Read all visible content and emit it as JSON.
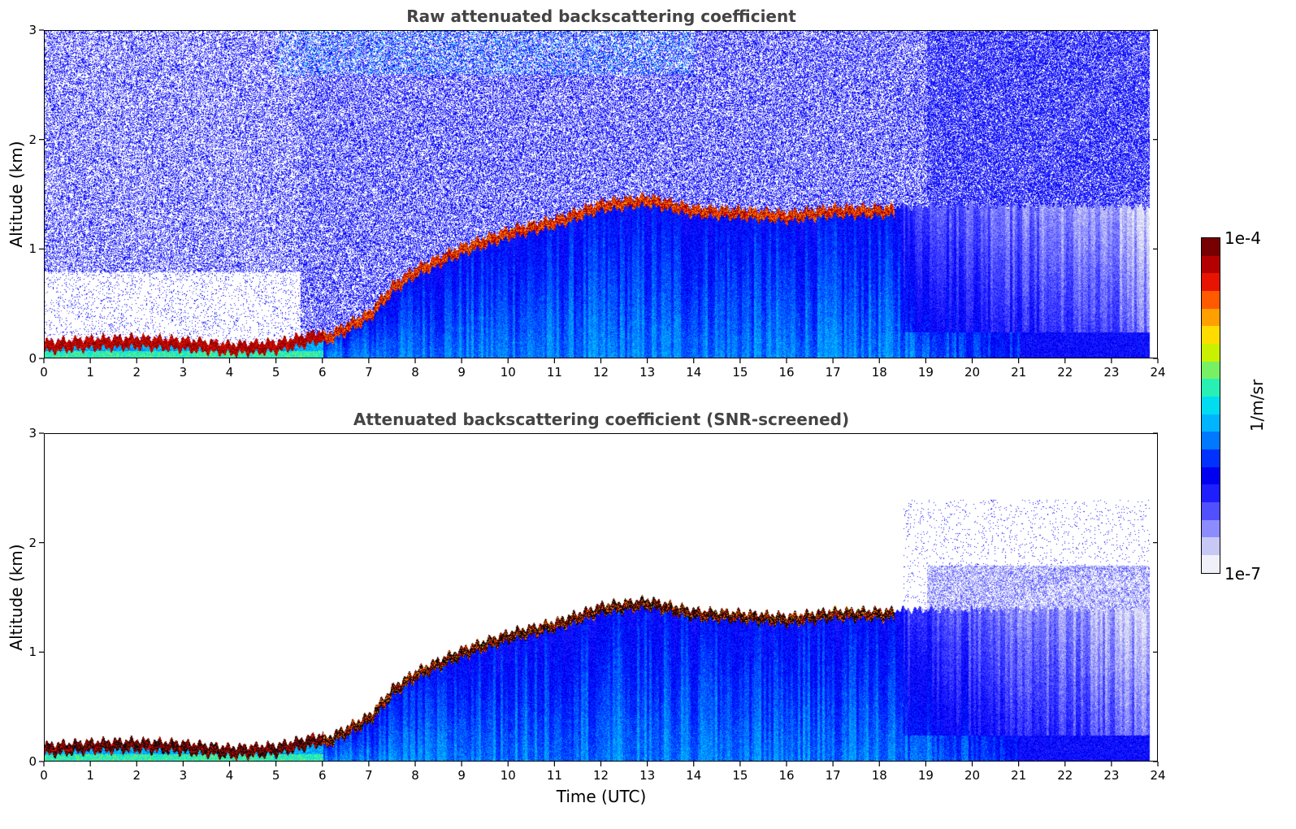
{
  "chart_data": [
    {
      "type": "heatmap",
      "title": "Raw attenuated backscattering coefficient",
      "xlabel": "",
      "ylabel": "Altitude (km)",
      "xlim": [
        0,
        24
      ],
      "ylim": [
        0,
        3
      ],
      "xticks": [
        "0",
        "1",
        "2",
        "3",
        "4",
        "5",
        "6",
        "7",
        "8",
        "9",
        "10",
        "11",
        "12",
        "13",
        "14",
        "15",
        "16",
        "17",
        "18",
        "19",
        "20",
        "21",
        "22",
        "23",
        "24"
      ],
      "yticks": [
        "0",
        "1",
        "2",
        "3"
      ],
      "boundary_layer_top_km": {
        "time": [
          0,
          1,
          2,
          3,
          4,
          5,
          6,
          7,
          7.5,
          8,
          9,
          10,
          11,
          12,
          13,
          14,
          15,
          16,
          17,
          18
        ],
        "altitude": [
          0.12,
          0.15,
          0.16,
          0.14,
          0.1,
          0.12,
          0.22,
          0.45,
          0.7,
          0.85,
          1.05,
          1.2,
          1.3,
          1.45,
          1.5,
          1.4,
          1.38,
          1.35,
          1.4,
          1.4
        ]
      }
    },
    {
      "type": "heatmap",
      "title": "Attenuated backscattering coefficient (SNR-screened)",
      "xlabel": "Time (UTC)",
      "ylabel": "Altitude (km)",
      "xlim": [
        0,
        24
      ],
      "ylim": [
        0,
        3
      ],
      "xticks": [
        "0",
        "1",
        "2",
        "3",
        "4",
        "5",
        "6",
        "7",
        "8",
        "9",
        "10",
        "11",
        "12",
        "13",
        "14",
        "15",
        "16",
        "17",
        "18",
        "19",
        "20",
        "21",
        "22",
        "23",
        "24"
      ],
      "yticks": [
        "0",
        "1",
        "2",
        "3"
      ]
    }
  ],
  "colorbar": {
    "label": "1/m/sr",
    "max_label": "1e-4",
    "min_label": "1e-7",
    "scale": "log",
    "range": [
      1e-07,
      0.0001
    ],
    "colors": [
      "#f0f0fa",
      "#c8c8f5",
      "#8c8cff",
      "#5050ff",
      "#1e1eff",
      "#0000f0",
      "#0032ff",
      "#0078ff",
      "#00b4ff",
      "#00dcf0",
      "#28f0b4",
      "#78f064",
      "#c8f000",
      "#ffdc00",
      "#ffa000",
      "#ff5a00",
      "#e61400",
      "#b40000",
      "#780000"
    ]
  }
}
